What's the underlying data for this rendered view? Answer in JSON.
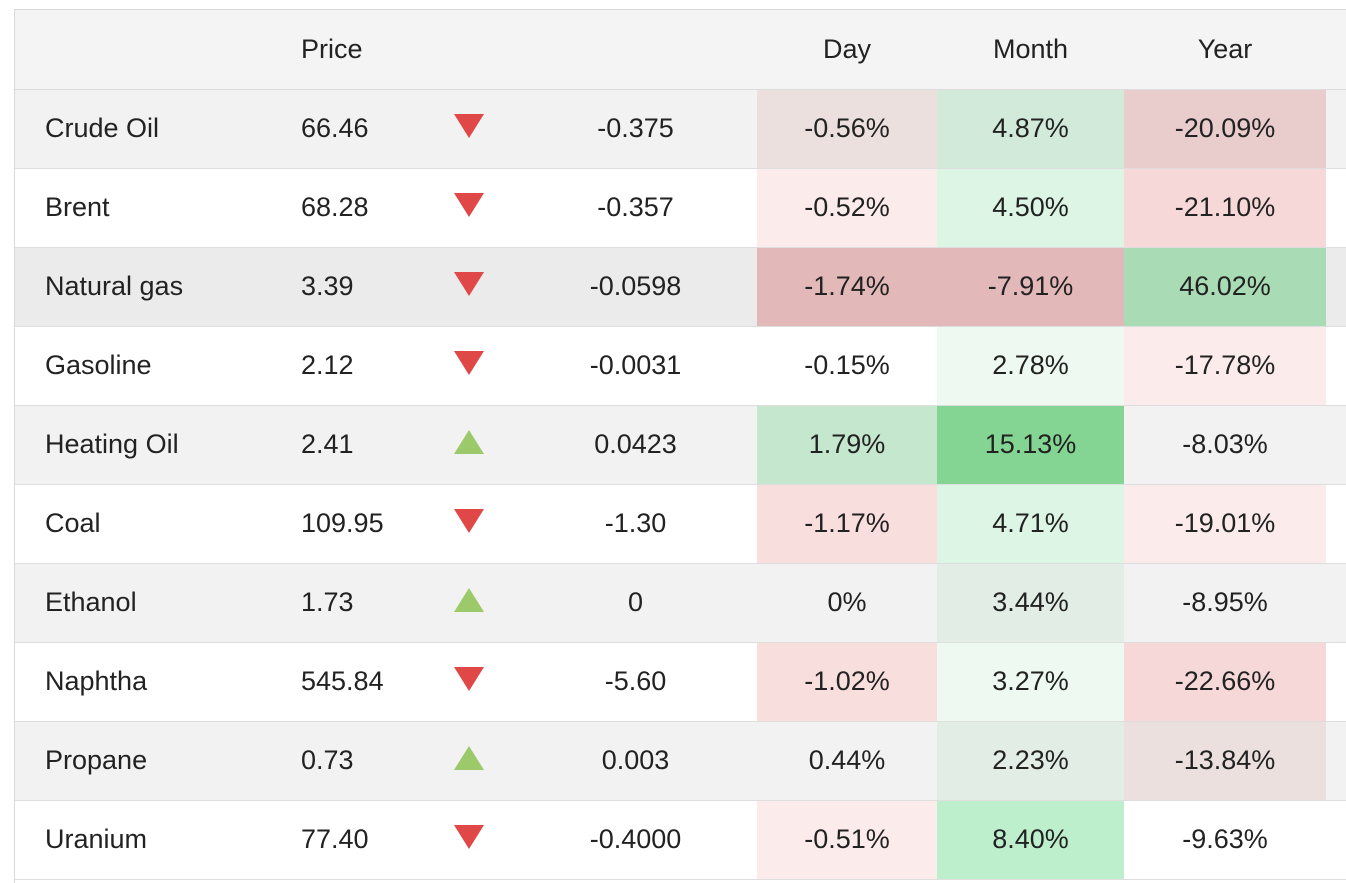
{
  "header": {
    "name": "",
    "price": "Price",
    "direction": "",
    "change": "",
    "day": "Day",
    "month": "Month",
    "year": "Year"
  },
  "colors": {
    "down_arrow": "#e04848",
    "up_arrow": "#9cca6a"
  },
  "rows": [
    {
      "name": "Crude Oil",
      "price": "66.46",
      "direction": "down",
      "change": "-0.375",
      "day": "-0.56%",
      "month": "4.87%",
      "year": "-20.09%",
      "day_color": "#ece0df",
      "month_color": "#d2eada",
      "year_color": "#e9cccc"
    },
    {
      "name": "Brent",
      "price": "68.28",
      "direction": "down",
      "change": "-0.357",
      "day": "-0.52%",
      "month": "4.50%",
      "year": "-21.10%",
      "day_color": "#fcebeb",
      "month_color": "#ddf5e4",
      "year_color": "#f7d8d8"
    },
    {
      "name": "Natural gas",
      "price": "3.39",
      "direction": "down",
      "change": "-0.0598",
      "day": "-1.74%",
      "month": "-7.91%",
      "year": "46.02%",
      "day_color": "#e3b8b9",
      "month_color": "#e3b8b9",
      "year_color": "#a9dcb4"
    },
    {
      "name": "Gasoline",
      "price": "2.12",
      "direction": "down",
      "change": "-0.0031",
      "day": "-0.15%",
      "month": "2.78%",
      "year": "-17.78%",
      "day_color": "",
      "month_color": "#eefaf1",
      "year_color": "#fcebeb"
    },
    {
      "name": "Heating Oil",
      "price": "2.41",
      "direction": "up",
      "change": "0.0423",
      "day": "1.79%",
      "month": "15.13%",
      "year": "-8.03%",
      "day_color": "#c5e7ce",
      "month_color": "#84d593",
      "year_color": ""
    },
    {
      "name": "Coal",
      "price": "109.95",
      "direction": "down",
      "change": "-1.30",
      "day": "-1.17%",
      "month": "4.71%",
      "year": "-19.01%",
      "day_color": "#f9dede",
      "month_color": "#ddf5e4",
      "year_color": "#fcebeb"
    },
    {
      "name": "Ethanol",
      "price": "1.73",
      "direction": "up",
      "change": "0",
      "day": "0%",
      "month": "3.44%",
      "year": "-8.95%",
      "day_color": "",
      "month_color": "#e2ede5",
      "year_color": ""
    },
    {
      "name": "Naphtha",
      "price": "545.84",
      "direction": "down",
      "change": "-5.60",
      "day": "-1.02%",
      "month": "3.27%",
      "year": "-22.66%",
      "day_color": "#f9dede",
      "month_color": "#eefaf1",
      "year_color": "#f7d8d8"
    },
    {
      "name": "Propane",
      "price": "0.73",
      "direction": "up",
      "change": "0.003",
      "day": "0.44%",
      "month": "2.23%",
      "year": "-13.84%",
      "day_color": "",
      "month_color": "#e2ede5",
      "year_color": "#ece0df"
    },
    {
      "name": "Uranium",
      "price": "77.40",
      "direction": "down",
      "change": "-0.4000",
      "day": "-0.51%",
      "month": "8.40%",
      "year": "-9.63%",
      "day_color": "#fcebeb",
      "month_color": "#bdefcc",
      "year_color": ""
    }
  ]
}
